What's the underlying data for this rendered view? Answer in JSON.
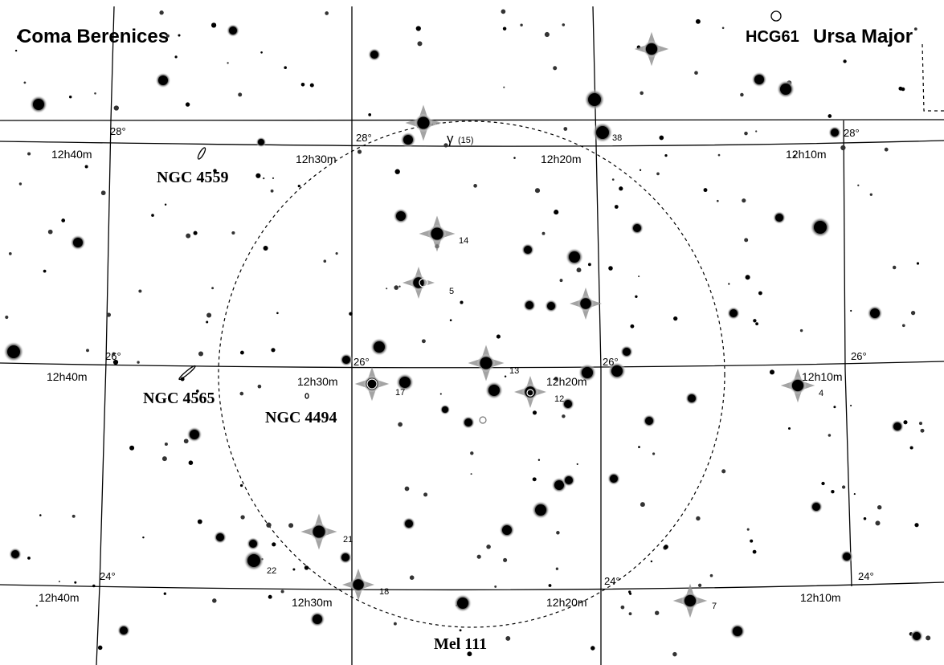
{
  "constellations": {
    "left": "Coma Berenices",
    "right": "Ursa Major"
  },
  "objects": {
    "hcg61": "HCG61",
    "ngc4559": "NGC 4559",
    "ngc4565": "NGC 4565",
    "ngc4494": "NGC 4494",
    "mel111": "Mel 111"
  },
  "ra_labels": {
    "h12h40": "12h40m",
    "h12h30": "12h30m",
    "h12h20": "12h20m",
    "h12h10": "12h10m"
  },
  "dec_labels": {
    "d28": "28°",
    "d26": "26°",
    "d24": "24°"
  },
  "star_labels": {
    "gamma_greek": "γ",
    "gamma_flam": "(15)",
    "s14": "14",
    "s5": "5",
    "s13": "13",
    "s12": "12",
    "s17": "17",
    "s4": "4",
    "s22": "22",
    "s18": "18",
    "s7": "7",
    "s38": "38",
    "s21": "21"
  },
  "colors": {
    "background": "#ffffff",
    "ink": "#000000",
    "star_glow": "#9a9a9a"
  }
}
